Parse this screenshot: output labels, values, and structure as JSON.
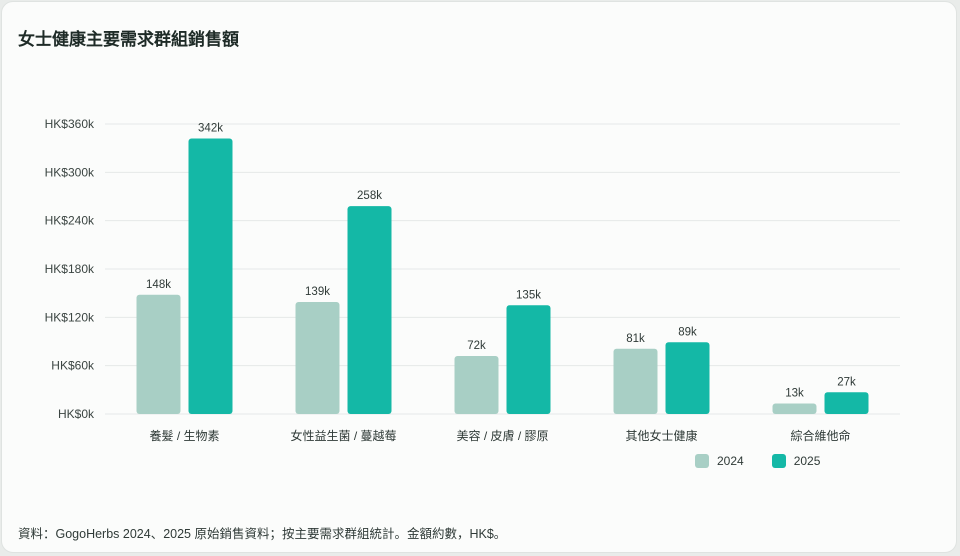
{
  "chart_data": {
    "type": "bar",
    "title": "女士健康主要需求群組銷售額",
    "categories": [
      "養髮 / 生物素",
      "女性益生菌 / 蔓越莓",
      "美容 / 皮膚 / 膠原",
      "其他女士健康",
      "綜合維他命"
    ],
    "series": [
      {
        "name": "2024",
        "color": "#a8cfc5",
        "values": [
          148,
          139,
          72,
          81,
          13
        ],
        "labels": [
          "148k",
          "139k",
          "72k",
          "81k",
          "13k"
        ]
      },
      {
        "name": "2025",
        "color": "#14b8a6",
        "values": [
          342,
          258,
          135,
          89,
          27
        ],
        "labels": [
          "342k",
          "258k",
          "135k",
          "89k",
          "27k"
        ]
      }
    ],
    "yticks": [
      0,
      60,
      120,
      180,
      240,
      300,
      360
    ],
    "ytick_labels": [
      "HK$0k",
      "HK$60k",
      "HK$120k",
      "HK$180k",
      "HK$240k",
      "HK$300k",
      "HK$360k"
    ],
    "ylim": [
      0,
      360
    ],
    "grid": true,
    "legend": "bottom-right"
  },
  "footer": {
    "source": "資料：GogoHerbs 2024、2025 原始銷售資料；按主要需求群組統計。金額約數，HK$。"
  }
}
